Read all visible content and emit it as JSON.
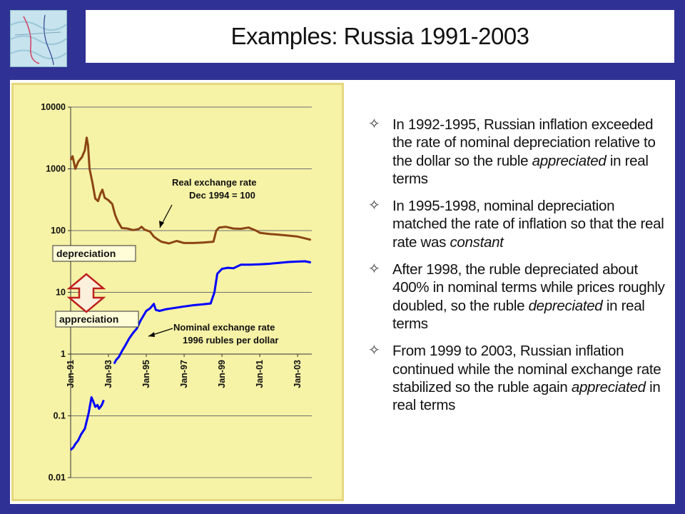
{
  "title": "Examples: Russia 1991-2003",
  "logo_icon": "wave-map-icon",
  "bullets": [
    [
      "In 1992-1995, Russian inflation exceeded the rate of nominal depreciation relative to the dollar so the ruble ",
      "appreciated",
      " in real terms"
    ],
    [
      "In 1995-1998, nominal depreciation matched the rate of inflation so that the real rate was ",
      "constant",
      ""
    ],
    [
      "After 1998, the ruble depreciated about 400% in nominal terms while prices roughly doubled, so the ruble ",
      "depreciated",
      " in real terms"
    ],
    [
      "From 1999 to 2003, Russian inflation continued while the nominal exchange rate stabilized so the ruble again ",
      "appreciated",
      " in real terms"
    ]
  ],
  "bullet_icon": "four-point-star-icon",
  "chart_data": {
    "type": "line",
    "y_scale": "log",
    "ylim": [
      0.01,
      10000
    ],
    "y_ticks": [
      "10000",
      "1000",
      "100",
      "10",
      "1",
      "0.1",
      "0.01"
    ],
    "x_range": [
      1991.0,
      2003.75
    ],
    "x_ticks": [
      {
        "label": "Jan-91",
        "x": 1991.0
      },
      {
        "label": "Jan-93",
        "x": 1993.0
      },
      {
        "label": "Jan-95",
        "x": 1995.0
      },
      {
        "label": "Jan-97",
        "x": 1997.0
      },
      {
        "label": "Jan-99",
        "x": 1999.0
      },
      {
        "label": "Jan-01",
        "x": 2001.0
      },
      {
        "label": "Jan-03",
        "x": 2003.0
      }
    ],
    "grid": true,
    "colors": {
      "real": "#8b4513",
      "nominal": "#0000ff",
      "arrow": "#c02020",
      "background": "#ffff99"
    },
    "annotations": [
      {
        "id": "real-label",
        "lines": [
          "Real exchange rate",
          "Dec 1994 = 100"
        ]
      },
      {
        "id": "nominal-label",
        "lines": [
          "Nominal exchange rate",
          "1996 rubles per  dollar"
        ]
      },
      {
        "id": "depreciation",
        "text": "depreciation"
      },
      {
        "id": "appreciation",
        "text": "appreciation"
      }
    ],
    "series": [
      {
        "points": [
          [
            1991.0,
            1400
          ],
          [
            1991.1,
            1600
          ],
          [
            1991.25,
            1000
          ],
          [
            1991.4,
            1300
          ],
          [
            1991.6,
            1550
          ],
          [
            1991.75,
            2000
          ],
          [
            1991.85,
            3200
          ],
          [
            1991.92,
            2400
          ],
          [
            1992.0,
            1000
          ],
          [
            1992.15,
            600
          ],
          [
            1992.3,
            330
          ],
          [
            1992.45,
            300
          ],
          [
            1992.58,
            400
          ],
          [
            1992.68,
            460
          ],
          [
            1992.8,
            340
          ],
          [
            1993.0,
            310
          ],
          [
            1993.2,
            270
          ],
          [
            1993.35,
            180
          ],
          [
            1993.5,
            140
          ],
          [
            1993.7,
            110
          ],
          [
            1994.0,
            108
          ],
          [
            1994.3,
            102
          ],
          [
            1994.6,
            106
          ],
          [
            1994.75,
            115
          ],
          [
            1994.9,
            104
          ],
          [
            1995.2,
            96
          ],
          [
            1995.4,
            80
          ],
          [
            1995.6,
            72
          ],
          [
            1995.8,
            66
          ],
          [
            1996.2,
            62
          ],
          [
            1996.6,
            68
          ],
          [
            1997.0,
            63
          ],
          [
            1997.5,
            63
          ],
          [
            1998.0,
            64
          ],
          [
            1998.55,
            66
          ],
          [
            1998.7,
            100
          ],
          [
            1998.85,
            112
          ],
          [
            1999.2,
            115
          ],
          [
            1999.6,
            108
          ],
          [
            2000.0,
            107
          ],
          [
            2000.4,
            112
          ],
          [
            2000.8,
            100
          ],
          [
            2001.0,
            92
          ],
          [
            2001.5,
            88
          ],
          [
            2002.0,
            86
          ],
          [
            2002.5,
            83
          ],
          [
            2003.0,
            80
          ],
          [
            2003.3,
            76
          ],
          [
            2003.7,
            71
          ]
        ]
      },
      {
        "segments": [
          [
            [
              1991.0,
              0.028
            ],
            [
              1991.15,
              0.031
            ],
            [
              1991.25,
              0.035
            ],
            [
              1991.4,
              0.04
            ],
            [
              1991.55,
              0.05
            ],
            [
              1991.75,
              0.062
            ],
            [
              1991.95,
              0.11
            ],
            [
              1992.1,
              0.2
            ],
            [
              1992.2,
              0.17
            ],
            [
              1992.3,
              0.14
            ],
            [
              1992.42,
              0.15
            ],
            [
              1992.5,
              0.13
            ],
            [
              1992.65,
              0.15
            ],
            [
              1992.75,
              0.18
            ]
          ],
          [
            [
              1993.3,
              0.7
            ],
            [
              1993.4,
              0.8
            ],
            [
              1993.55,
              0.9
            ],
            [
              1993.7,
              1.1
            ],
            [
              1993.9,
              1.4
            ],
            [
              1994.1,
              1.8
            ],
            [
              1994.3,
              2.2
            ],
            [
              1994.5,
              2.6
            ],
            [
              1994.7,
              3.5
            ],
            [
              1994.85,
              4.2
            ],
            [
              1995.0,
              5.0
            ],
            [
              1995.2,
              5.5
            ],
            [
              1995.4,
              6.5
            ],
            [
              1995.5,
              5.2
            ],
            [
              1995.7,
              5.0
            ],
            [
              1996.0,
              5.3
            ],
            [
              1996.5,
              5.6
            ],
            [
              1997.0,
              5.9
            ],
            [
              1997.5,
              6.2
            ],
            [
              1998.0,
              6.4
            ],
            [
              1998.4,
              6.6
            ],
            [
              1998.6,
              10
            ],
            [
              1998.75,
              20
            ],
            [
              1999.0,
              24
            ],
            [
              1999.3,
              25
            ],
            [
              1999.6,
              24.5
            ],
            [
              2000.0,
              28
            ],
            [
              2000.5,
              28
            ],
            [
              2001.0,
              28.5
            ],
            [
              2001.5,
              29
            ],
            [
              2002.0,
              30
            ],
            [
              2002.5,
              31
            ],
            [
              2003.0,
              31.5
            ],
            [
              2003.4,
              31.8
            ],
            [
              2003.7,
              30.5
            ]
          ]
        ]
      }
    ]
  }
}
